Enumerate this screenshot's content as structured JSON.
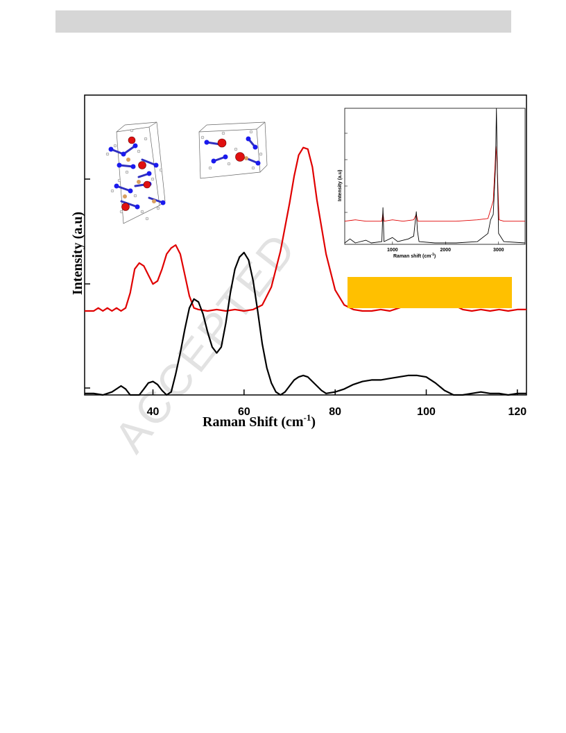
{
  "watermark": "ACCEPTED",
  "chart_data": [
    {
      "type": "line",
      "xlabel": "Raman Shift (cm",
      "xlabel_superscript": "-1",
      "xlabel_suffix": ")",
      "ylabel": "Intensity (a.u)",
      "xlim": [
        25,
        122
      ],
      "ylim": [
        0,
        1
      ],
      "x_ticks": [
        40,
        60,
        80,
        100,
        120
      ],
      "grid": false,
      "series": [
        {
          "color": "#e00000",
          "points": [
            [
              25,
              0.28
            ],
            [
              27,
              0.28
            ],
            [
              28,
              0.29
            ],
            [
              29,
              0.28
            ],
            [
              30,
              0.29
            ],
            [
              31,
              0.28
            ],
            [
              32,
              0.29
            ],
            [
              33,
              0.28
            ],
            [
              34,
              0.29
            ],
            [
              35,
              0.34
            ],
            [
              36,
              0.42
            ],
            [
              37,
              0.44
            ],
            [
              38,
              0.43
            ],
            [
              39,
              0.4
            ],
            [
              40,
              0.37
            ],
            [
              41,
              0.38
            ],
            [
              42,
              0.42
            ],
            [
              43,
              0.47
            ],
            [
              44,
              0.49
            ],
            [
              45,
              0.5
            ],
            [
              46,
              0.47
            ],
            [
              47,
              0.4
            ],
            [
              48,
              0.33
            ],
            [
              49,
              0.29
            ],
            [
              50,
              0.285
            ],
            [
              52,
              0.28
            ],
            [
              54,
              0.285
            ],
            [
              56,
              0.28
            ],
            [
              58,
              0.285
            ],
            [
              60,
              0.28
            ],
            [
              62,
              0.285
            ],
            [
              64,
              0.3
            ],
            [
              66,
              0.36
            ],
            [
              68,
              0.48
            ],
            [
              70,
              0.64
            ],
            [
              71,
              0.73
            ],
            [
              72,
              0.8
            ],
            [
              73,
              0.825
            ],
            [
              74,
              0.82
            ],
            [
              75,
              0.76
            ],
            [
              76,
              0.65
            ],
            [
              78,
              0.47
            ],
            [
              80,
              0.35
            ],
            [
              82,
              0.3
            ],
            [
              84,
              0.285
            ],
            [
              86,
              0.28
            ],
            [
              88,
              0.28
            ],
            [
              90,
              0.285
            ],
            [
              92,
              0.28
            ],
            [
              94,
              0.29
            ],
            [
              96,
              0.3
            ],
            [
              98,
              0.305
            ],
            [
              100,
              0.31
            ],
            [
              102,
              0.32
            ],
            [
              104,
              0.315
            ],
            [
              106,
              0.3
            ],
            [
              108,
              0.285
            ],
            [
              110,
              0.28
            ],
            [
              112,
              0.285
            ],
            [
              114,
              0.28
            ],
            [
              116,
              0.285
            ],
            [
              118,
              0.28
            ],
            [
              120,
              0.285
            ],
            [
              122,
              0.285
            ]
          ]
        },
        {
          "color": "#000000",
          "points": [
            [
              25,
              0.005
            ],
            [
              27,
              0.005
            ],
            [
              29,
              0.0
            ],
            [
              31,
              0.01
            ],
            [
              33,
              0.03
            ],
            [
              34,
              0.02
            ],
            [
              35,
              0.0
            ],
            [
              37,
              0.0
            ],
            [
              38,
              0.02
            ],
            [
              39,
              0.04
            ],
            [
              40,
              0.045
            ],
            [
              41,
              0.035
            ],
            [
              42,
              0.015
            ],
            [
              43,
              0.0
            ],
            [
              44,
              0.01
            ],
            [
              45,
              0.07
            ],
            [
              46,
              0.14
            ],
            [
              47,
              0.22
            ],
            [
              48,
              0.29
            ],
            [
              49,
              0.32
            ],
            [
              50,
              0.31
            ],
            [
              51,
              0.27
            ],
            [
              52,
              0.21
            ],
            [
              53,
              0.16
            ],
            [
              54,
              0.14
            ],
            [
              55,
              0.16
            ],
            [
              56,
              0.24
            ],
            [
              57,
              0.34
            ],
            [
              58,
              0.42
            ],
            [
              59,
              0.46
            ],
            [
              60,
              0.475
            ],
            [
              61,
              0.45
            ],
            [
              62,
              0.38
            ],
            [
              63,
              0.28
            ],
            [
              64,
              0.17
            ],
            [
              65,
              0.09
            ],
            [
              66,
              0.04
            ],
            [
              67,
              0.01
            ],
            [
              68,
              0.0
            ],
            [
              69,
              0.01
            ],
            [
              70,
              0.03
            ],
            [
              71,
              0.05
            ],
            [
              72,
              0.06
            ],
            [
              73,
              0.065
            ],
            [
              74,
              0.06
            ],
            [
              75,
              0.045
            ],
            [
              76,
              0.03
            ],
            [
              77,
              0.015
            ],
            [
              78,
              0.005
            ],
            [
              80,
              0.01
            ],
            [
              82,
              0.02
            ],
            [
              84,
              0.035
            ],
            [
              86,
              0.045
            ],
            [
              88,
              0.05
            ],
            [
              90,
              0.05
            ],
            [
              92,
              0.055
            ],
            [
              94,
              0.06
            ],
            [
              96,
              0.065
            ],
            [
              98,
              0.065
            ],
            [
              100,
              0.06
            ],
            [
              102,
              0.04
            ],
            [
              104,
              0.015
            ],
            [
              106,
              0.0
            ],
            [
              108,
              0.0
            ],
            [
              110,
              0.005
            ],
            [
              112,
              0.01
            ],
            [
              114,
              0.005
            ],
            [
              116,
              0.005
            ],
            [
              118,
              0.0
            ],
            [
              120,
              0.005
            ],
            [
              122,
              0.005
            ]
          ]
        }
      ]
    },
    {
      "type": "line",
      "xlabel": "Raman shift (cm",
      "xlabel_superscript": "-1",
      "xlabel_suffix": ")",
      "ylabel": "Intensity (a.u)",
      "xlim": [
        100,
        3500
      ],
      "ylim": [
        0,
        1
      ],
      "x_ticks": [
        1000,
        2000,
        3000
      ],
      "series": [
        {
          "color": "#e00000",
          "points": [
            [
              100,
              0.17
            ],
            [
              300,
              0.18
            ],
            [
              500,
              0.17
            ],
            [
              800,
              0.17
            ],
            [
              820,
              0.23
            ],
            [
              840,
              0.17
            ],
            [
              1000,
              0.18
            ],
            [
              1200,
              0.17
            ],
            [
              1400,
              0.18
            ],
            [
              1450,
              0.22
            ],
            [
              1480,
              0.17
            ],
            [
              1800,
              0.17
            ],
            [
              2200,
              0.17
            ],
            [
              2600,
              0.18
            ],
            [
              2800,
              0.19
            ],
            [
              2870,
              0.28
            ],
            [
              2900,
              0.32
            ],
            [
              2930,
              0.55
            ],
            [
              2950,
              0.72
            ],
            [
              2970,
              0.6
            ],
            [
              2990,
              0.4
            ],
            [
              3010,
              0.18
            ],
            [
              3100,
              0.17
            ],
            [
              3500,
              0.17
            ]
          ]
        },
        {
          "color": "#000000",
          "points": [
            [
              100,
              0.01
            ],
            [
              200,
              0.04
            ],
            [
              300,
              0.01
            ],
            [
              500,
              0.03
            ],
            [
              600,
              0.01
            ],
            [
              800,
              0.02
            ],
            [
              820,
              0.27
            ],
            [
              840,
              0.02
            ],
            [
              1000,
              0.05
            ],
            [
              1100,
              0.02
            ],
            [
              1300,
              0.04
            ],
            [
              1400,
              0.06
            ],
            [
              1450,
              0.24
            ],
            [
              1470,
              0.1
            ],
            [
              1500,
              0.02
            ],
            [
              1800,
              0.01
            ],
            [
              2200,
              0.01
            ],
            [
              2600,
              0.02
            ],
            [
              2800,
              0.08
            ],
            [
              2850,
              0.18
            ],
            [
              2900,
              0.22
            ],
            [
              2940,
              0.55
            ],
            [
              2960,
              1.0
            ],
            [
              2980,
              0.5
            ],
            [
              3000,
              0.08
            ],
            [
              3100,
              0.02
            ],
            [
              3500,
              0.01
            ]
          ]
        }
      ]
    }
  ]
}
